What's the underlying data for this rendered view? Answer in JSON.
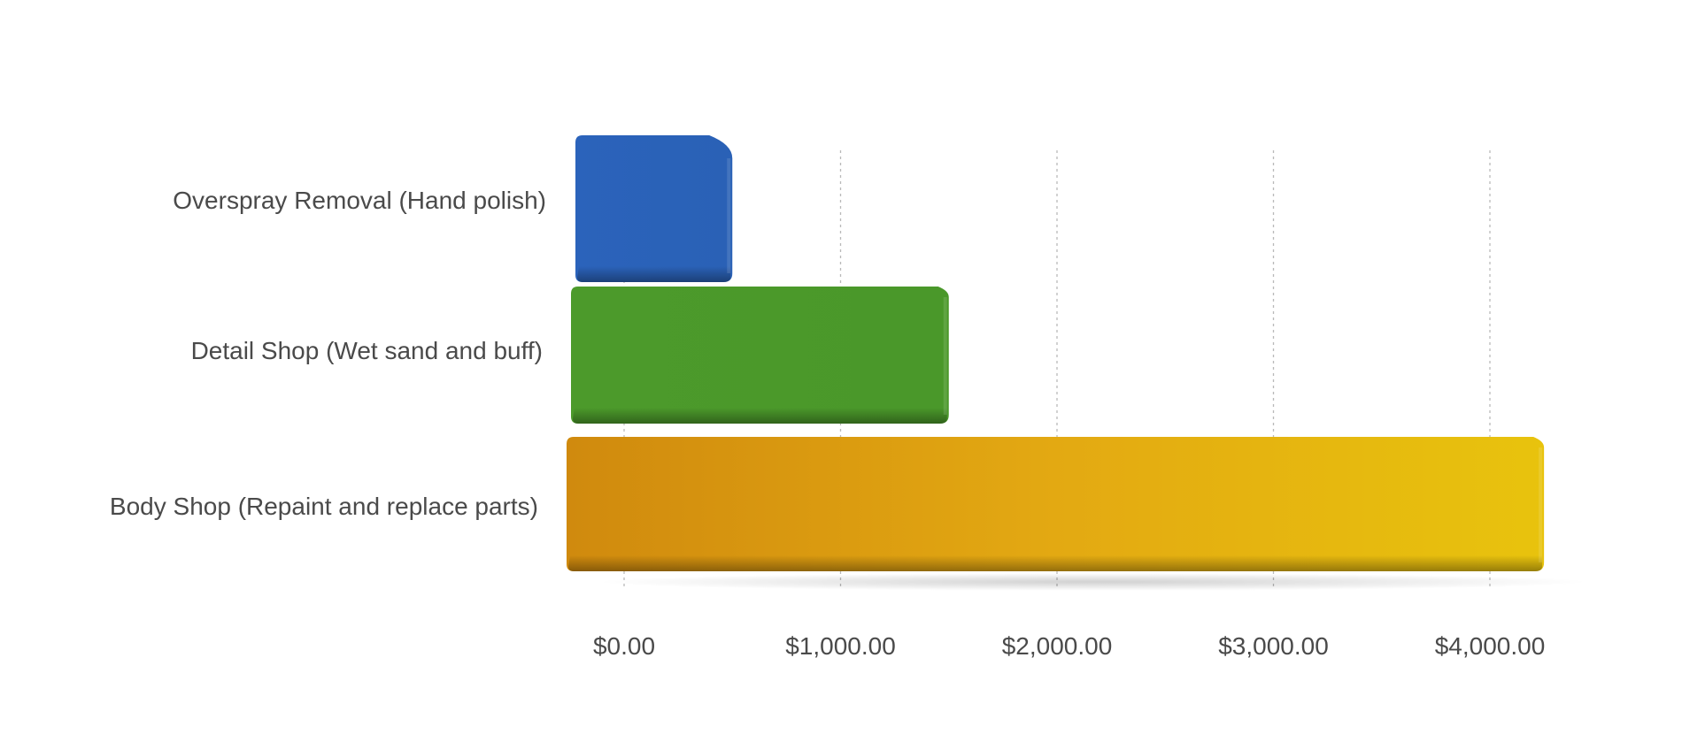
{
  "chart_data": {
    "type": "bar",
    "orientation": "horizontal",
    "title": "",
    "xlabel": "",
    "ylabel": "",
    "categories": [
      "Overspray Removal  (Hand polish)",
      "Detail Shop  (Wet sand and buff)",
      "Body Shop  (Repaint and replace parts)"
    ],
    "values": [
      500,
      1500,
      4250
    ],
    "xlim": [
      0,
      4000
    ],
    "x_ticks": [
      0,
      1000,
      2000,
      3000,
      4000
    ],
    "x_tick_labels": [
      "$0.00",
      "$1,000.00",
      "$2,000.00",
      "$3,000.00",
      "$4,000.00"
    ],
    "grid": "vertical dotted",
    "legend": "none",
    "colors": [
      "#2a62b8",
      "#4a9a2a",
      "#e0a413"
    ]
  }
}
